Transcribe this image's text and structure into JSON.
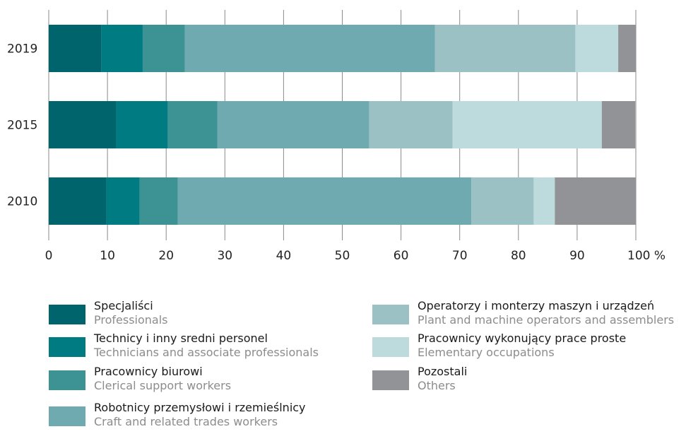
{
  "chart_data": {
    "type": "bar",
    "orientation": "horizontal",
    "stacked": true,
    "categories": [
      "2019",
      "2015",
      "2010"
    ],
    "series": [
      {
        "name": "Specjaliści",
        "name_en": "Professionals",
        "color": "#00646d",
        "values": [
          9.0,
          11.5,
          9.8
        ]
      },
      {
        "name": "Technicy i inny sredni personel",
        "name_en": "Technicians and associate professionals",
        "color": "#007b82",
        "values": [
          7.0,
          8.8,
          5.7
        ]
      },
      {
        "name": "Pracownicy biurowi",
        "name_en": "Clerical support workers",
        "color": "#3d9294",
        "values": [
          7.2,
          8.4,
          6.5
        ]
      },
      {
        "name": "Robotnicy przemysłowi i rzemieślnicy",
        "name_en": "Craft and related trades workers",
        "color": "#6faab0",
        "values": [
          42.6,
          25.9,
          50.0
        ]
      },
      {
        "name": "Operatorzy i monterzy maszyn i urządzeń",
        "name_en": "Plant and machine operators and assemblers",
        "color": "#9bc1c5",
        "values": [
          23.9,
          14.2,
          10.6
        ]
      },
      {
        "name": "Pracownicy wykonujący prace proste",
        "name_en": "Elementary occupations",
        "color": "#bddbdc",
        "values": [
          7.3,
          25.4,
          3.6
        ]
      },
      {
        "name": "Pozostali",
        "name_en": "Others",
        "color": "#929396",
        "values": [
          3.0,
          5.7,
          13.8
        ]
      }
    ],
    "xlim": [
      0,
      100
    ],
    "xticks": [
      "0",
      "10",
      "20",
      "30",
      "40",
      "50",
      "60",
      "70",
      "80",
      "90",
      "100 %"
    ],
    "grid": true,
    "legend_position": "bottom"
  }
}
